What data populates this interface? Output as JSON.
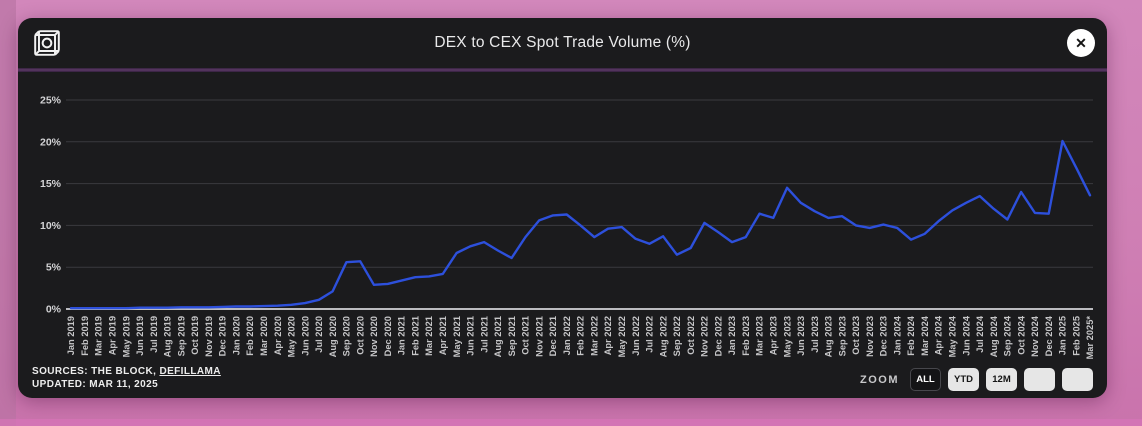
{
  "header": {
    "title": "DEX to CEX Spot Trade Volume (%)",
    "logo_name": "the-block-logo",
    "close_glyph": "✕"
  },
  "footer": {
    "sources_prefix": "SOURCES: THE BLOCK, ",
    "sources_link": "DEFILLAMA",
    "updated": "UPDATED: MAR 11, 2025",
    "zoom_label": "ZOOM",
    "zoom_buttons": [
      {
        "label": "ALL",
        "active": true
      },
      {
        "label": "YTD",
        "active": false
      },
      {
        "label": "12M",
        "active": false
      },
      {
        "label": "",
        "active": false
      },
      {
        "label": "",
        "active": false
      }
    ]
  },
  "colors": {
    "line": "#2d50dc",
    "card_background": "#1b1b1d",
    "frame_pink": "#cf7fb4",
    "divider_purple": "#5d3a68",
    "grid": "#3b3b3f",
    "axis": "#bcbcc0",
    "tick_text": "#c6c6c8"
  },
  "chart_data": {
    "type": "line",
    "title": "DEX to CEX Spot Trade Volume (%)",
    "legend": "none",
    "grid": "horizontal",
    "ylim": [
      0,
      27
    ],
    "yticks": [
      0,
      5,
      10,
      15,
      20,
      25
    ],
    "ytick_labels": [
      "0%",
      "5%",
      "10%",
      "15%",
      "20%",
      "25%"
    ],
    "x": [
      "Jan 2019",
      "Feb 2019",
      "Mar 2019",
      "Apr 2019",
      "May 2019",
      "Jun 2019",
      "Jul 2019",
      "Aug 2019",
      "Sep 2019",
      "Oct 2019",
      "Nov 2019",
      "Dec 2019",
      "Jan 2020",
      "Feb 2020",
      "Mar 2020",
      "Apr 2020",
      "May 2020",
      "Jun 2020",
      "Jul 2020",
      "Aug 2020",
      "Sep 2020",
      "Oct 2020",
      "Nov 2020",
      "Dec 2020",
      "Jan 2021",
      "Feb 2021",
      "Mar 2021",
      "Apr 2021",
      "May 2021",
      "Jun 2021",
      "Jul 2021",
      "Aug 2021",
      "Sep 2021",
      "Oct 2021",
      "Nov 2021",
      "Dec 2021",
      "Jan 2022",
      "Feb 2022",
      "Mar 2022",
      "Apr 2022",
      "May 2022",
      "Jun 2022",
      "Jul 2022",
      "Aug 2022",
      "Sep 2022",
      "Oct 2022",
      "Nov 2022",
      "Dec 2022",
      "Jan 2023",
      "Feb 2023",
      "Mar 2023",
      "Apr 2023",
      "May 2023",
      "Jun 2023",
      "Jul 2023",
      "Aug 2023",
      "Sep 2023",
      "Oct 2023",
      "Nov 2023",
      "Dec 2023",
      "Jan 2024",
      "Feb 2024",
      "Mar 2024",
      "Apr 2024",
      "May 2024",
      "Jun 2024",
      "Jul 2024",
      "Aug 2024",
      "Sep 2024",
      "Oct 2024",
      "Nov 2024",
      "Dec 2024",
      "Jan 2025",
      "Feb 2025",
      "Mar 2025*"
    ],
    "values": [
      0.1,
      0.1,
      0.1,
      0.1,
      0.1,
      0.15,
      0.15,
      0.15,
      0.2,
      0.2,
      0.2,
      0.25,
      0.3,
      0.3,
      0.35,
      0.4,
      0.5,
      0.7,
      1.1,
      2.1,
      5.6,
      5.7,
      2.9,
      3.0,
      3.4,
      3.8,
      3.9,
      4.2,
      6.7,
      7.5,
      8.0,
      7.0,
      6.1,
      8.6,
      10.6,
      11.2,
      11.3,
      10.0,
      8.6,
      9.6,
      9.8,
      8.4,
      7.8,
      8.7,
      6.5,
      7.3,
      10.3,
      9.2,
      8.0,
      8.6,
      11.4,
      10.9,
      14.5,
      12.7,
      11.7,
      10.9,
      11.1,
      10.0,
      9.7,
      10.1,
      9.7,
      8.3,
      9.0,
      10.5,
      11.8,
      12.7,
      13.5,
      12.0,
      10.7,
      14.0,
      11.5,
      11.4,
      20.1,
      16.9,
      13.6
    ]
  }
}
